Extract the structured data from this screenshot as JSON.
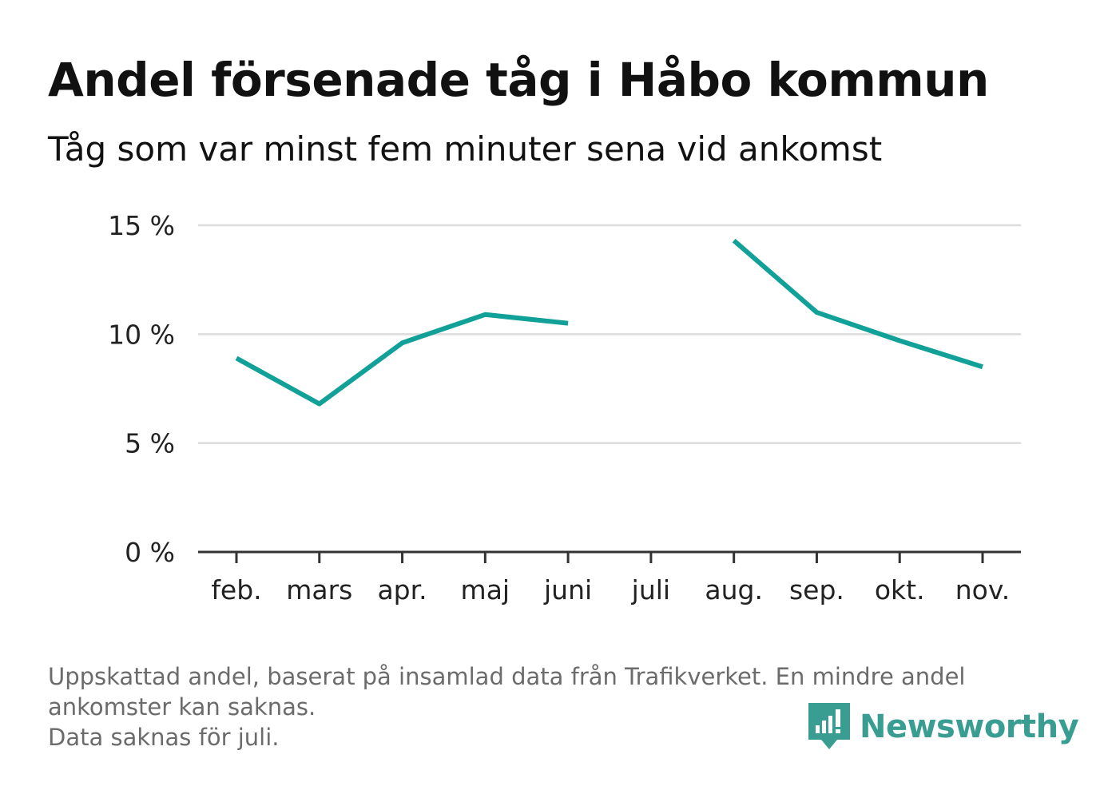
{
  "header": {
    "title": "Andel försenade tåg i Håbo kommun",
    "subtitle": "Tåg som var minst fem minuter sena vid ankomst"
  },
  "chart_data": {
    "type": "line",
    "title": "Andel försenade tåg i Håbo kommun",
    "subtitle": "Tåg som var minst fem minuter sena vid ankomst",
    "xlabel": "",
    "ylabel": "",
    "categories": [
      "feb.",
      "mars",
      "apr.",
      "maj",
      "juni",
      "juli",
      "aug.",
      "sep.",
      "okt.",
      "nov."
    ],
    "series": [
      {
        "values": [
          8.9,
          6.8,
          9.6,
          10.9,
          10.5,
          null,
          14.3,
          11.0,
          9.7,
          8.5
        ]
      }
    ],
    "ylim": [
      0,
      15
    ],
    "yticks": [
      0,
      5,
      10,
      15
    ],
    "ytick_labels": [
      "0 %",
      "5 %",
      "10 %",
      "15 %"
    ],
    "grid": true,
    "legend": "none",
    "colors": {
      "line": "#12a198",
      "grid": "#dcdcdc",
      "axis": "#333333",
      "tick_text": "#222222"
    }
  },
  "footer": {
    "note_lines": [
      "Uppskattad andel, baserat på insamlad data från Trafikverket. En mindre andel",
      "ankomster kan saknas.",
      "Data saknas för juli."
    ],
    "brand": "Newsworthy",
    "brand_color": "#3a9d92",
    "brand_icon": "newsworthy-logo-icon"
  }
}
